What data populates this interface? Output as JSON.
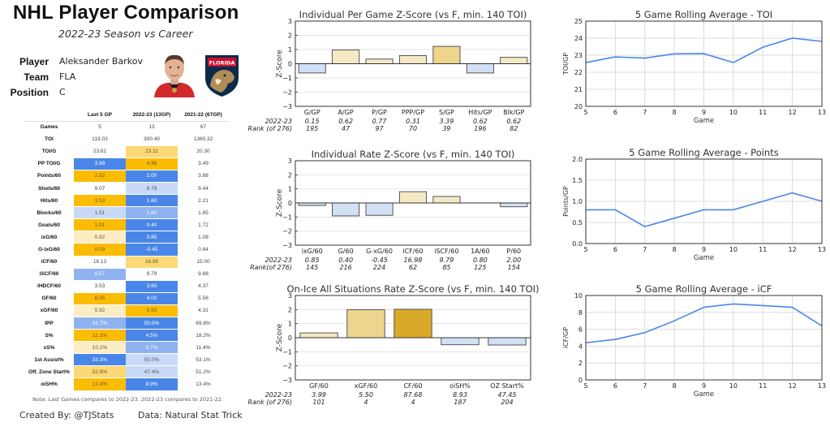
{
  "header": {
    "title": "NHL Player Comparison",
    "subtitle": "2022-23 Season vs Career"
  },
  "player_info": {
    "player_label": "Player",
    "player_value": "Aleksander Barkov",
    "team_label": "Team",
    "team_value": "FLA",
    "position_label": "Position",
    "position_value": "C",
    "headshot_icon": "player-headshot",
    "team_logo_icon": "florida-panthers-logo"
  },
  "colors": {
    "dark_blue": "#4a86e8",
    "mid_blue": "#8fb3f0",
    "light_blue": "#c9daf8",
    "dark_gold": "#fbbc04",
    "mid_gold": "#fcd876",
    "light_gold": "#fdedc4",
    "line_blue": "#4a86e8",
    "bar_neg": "#d2e0f6",
    "bar_pos_light": "#f5e8c4",
    "bar_pos_mid": "#efd48e",
    "bar_pos_dark": "#d9a92a"
  },
  "stats_table": {
    "columns": [
      "",
      "Last 5 GP",
      "2022-23 (13GP)",
      "2021-22 (67GP)"
    ],
    "rows": [
      {
        "label": "Games",
        "values": [
          "5",
          "13",
          "67"
        ],
        "shades": [
          "",
          "",
          ""
        ]
      },
      {
        "label": "TOI",
        "values": [
          "119.03",
          "300.40",
          "1360.32"
        ],
        "shades": [
          "",
          "",
          ""
        ]
      },
      {
        "label": "TOI/G",
        "values": [
          "23.81",
          "23.11",
          "20.30"
        ],
        "shades": [
          "",
          "mid_gold",
          ""
        ]
      },
      {
        "label": "PP TOI/G",
        "values": [
          "3.88",
          "4.96",
          "3.49"
        ],
        "shades": [
          "dark_blue",
          "dark_gold",
          ""
        ]
      },
      {
        "label": "Points/60",
        "values": [
          "2.52",
          "2.00",
          "3.88"
        ],
        "shades": [
          "dark_gold",
          "dark_blue",
          ""
        ]
      },
      {
        "label": "Shots/60",
        "values": [
          "9.07",
          "8.79",
          "9.44"
        ],
        "shades": [
          "",
          "light_blue",
          ""
        ]
      },
      {
        "label": "Hits/60",
        "values": [
          "3.53",
          "1.60",
          "2.21"
        ],
        "shades": [
          "dark_gold",
          "dark_blue",
          ""
        ]
      },
      {
        "label": "Blocks/60",
        "values": [
          "1.51",
          "1.60",
          "1.85"
        ],
        "shades": [
          "light_blue",
          "mid_blue",
          ""
        ]
      },
      {
        "label": "Goals/60",
        "values": [
          "1.01",
          "0.40",
          "1.72"
        ],
        "shades": [
          "dark_gold",
          "dark_blue",
          ""
        ]
      },
      {
        "label": "ixG/60",
        "values": [
          "0.92",
          "0.85",
          "1.08"
        ],
        "shades": [
          "light_gold",
          "dark_blue",
          ""
        ]
      },
      {
        "label": "G-ixG/60",
        "values": [
          "0.09",
          "-0.45",
          "0.64"
        ],
        "shades": [
          "dark_gold",
          "dark_blue",
          ""
        ]
      },
      {
        "label": "iCF/60",
        "values": [
          "16.13",
          "16.98",
          "15.00"
        ],
        "shades": [
          "",
          "mid_gold",
          ""
        ]
      },
      {
        "label": "iSCF/60",
        "values": [
          "8.57",
          "9.79",
          "9.88"
        ],
        "shades": [
          "mid_blue",
          "",
          ""
        ]
      },
      {
        "label": "iHDCF/60",
        "values": [
          "3.53",
          "3.60",
          "4.37"
        ],
        "shades": [
          "",
          "dark_blue",
          ""
        ]
      },
      {
        "label": "GF/60",
        "values": [
          "6.05",
          "4.00",
          "5.56"
        ],
        "shades": [
          "dark_gold",
          "dark_blue",
          ""
        ]
      },
      {
        "label": "xGF/60",
        "values": [
          "5.92",
          "5.50",
          "4.31"
        ],
        "shades": [
          "light_gold",
          "dark_gold",
          ""
        ]
      },
      {
        "label": "IPP",
        "values": [
          "41.7%",
          "50.0%",
          "69.8%"
        ],
        "shades": [
          "mid_blue",
          "dark_blue",
          ""
        ]
      },
      {
        "label": "S%",
        "values": [
          "11.1%",
          "4.5%",
          "18.2%"
        ],
        "shades": [
          "dark_gold",
          "dark_blue",
          ""
        ]
      },
      {
        "label": "xS%",
        "values": [
          "10.2%",
          "9.7%",
          "11.4%"
        ],
        "shades": [
          "light_gold",
          "mid_blue",
          ""
        ]
      },
      {
        "label": "1st Assist%",
        "values": [
          "33.3%",
          "50.0%",
          "53.1%"
        ],
        "shades": [
          "dark_blue",
          "light_blue",
          ""
        ]
      },
      {
        "label": "Off. Zone Start%",
        "values": [
          "52.8%",
          "47.4%",
          "51.2%"
        ],
        "shades": [
          "mid_gold",
          "light_blue",
          ""
        ]
      },
      {
        "label": "oiSH%",
        "values": [
          "12.4%",
          "8.9%",
          "13.4%"
        ],
        "shades": [
          "dark_gold",
          "dark_blue",
          ""
        ]
      }
    ]
  },
  "footer": {
    "note": "Note: Last Games compares to 2022-23. 2022-23 compares to 2021-22.",
    "created_by": "Created By: @TJStats",
    "data_source": "Data: Natural Stat Trick"
  },
  "chart_data": [
    {
      "id": "per-game",
      "type": "bar",
      "title": "Individual Per Game Z-Score (vs F, min. 140 TOI)",
      "ylabel": "Z-Score",
      "ylim": [
        -3,
        3
      ],
      "yticks": [
        "3",
        "2",
        "1",
        "0",
        "−1",
        "−2",
        "−3"
      ],
      "categories": [
        "G/GP",
        "A/GP",
        "P/GP",
        "PPP/GP",
        "S/GP",
        "Hits/GP",
        "Blk/GP"
      ],
      "values": [
        -0.65,
        0.97,
        0.33,
        0.57,
        1.22,
        -0.65,
        0.45
      ],
      "season_label": "2022-23",
      "season_values": [
        "0.15",
        "0.62",
        "0.77",
        "0.31",
        "3.39",
        "0.62",
        "0.62"
      ],
      "rank_label": "Rank (of 276)",
      "ranks": [
        "195",
        "47",
        "97",
        "70",
        "39",
        "196",
        "82"
      ]
    },
    {
      "id": "rate",
      "type": "bar",
      "title": "Individual Rate Z-Score (vs F, min. 140 TOI)",
      "ylabel": "Z-Score",
      "ylim": [
        -3,
        3
      ],
      "yticks": [
        "3",
        "2",
        "1",
        "0",
        "−1",
        "−2",
        "−3"
      ],
      "categories": [
        "ixG/60",
        "G/60",
        "G-xG/60",
        "iCF/60",
        "iSCF/60",
        "1A/60",
        "P/60"
      ],
      "values": [
        -0.18,
        -0.92,
        -0.88,
        0.8,
        0.46,
        0.0,
        -0.27
      ],
      "season_label": "2022-23",
      "season_values": [
        "0.85",
        "0.40",
        "-0.45",
        "16.98",
        "9.79",
        "0.80",
        "2.00"
      ],
      "rank_label": "Rank(of 276)",
      "ranks": [
        "145",
        "216",
        "224",
        "62",
        "85",
        "125",
        "154"
      ]
    },
    {
      "id": "on-ice",
      "type": "bar",
      "title": "On-Ice All Situations Rate Z-Score (vs F, min. 140 TOI)",
      "ylabel": "Z-Score",
      "ylim": [
        -3,
        3
      ],
      "yticks": [
        "3",
        "2",
        "1",
        "0",
        "−1",
        "−2",
        "−3"
      ],
      "categories": [
        "GF/60",
        "xGF/60",
        "CF/60",
        "oiSH%",
        "OZ Start%"
      ],
      "values": [
        0.34,
        1.99,
        2.02,
        -0.5,
        -0.52
      ],
      "season_label": "2022-23",
      "season_values": [
        "3.99",
        "5.50",
        "87.68",
        "8.93",
        "47.45"
      ],
      "rank_label": "Rank (of 276)",
      "ranks": [
        "101",
        "4",
        "4",
        "187",
        "204"
      ]
    },
    {
      "id": "toi",
      "type": "line",
      "title": "5 Game Rolling Average - TOI",
      "xlabel": "Game",
      "ylabel": "TOI/GP",
      "xlim": [
        5,
        13
      ],
      "ylim": [
        20,
        25
      ],
      "x": [
        5,
        6,
        7,
        8,
        9,
        10,
        11,
        12,
        13
      ],
      "y": [
        22.57,
        22.9,
        22.83,
        23.08,
        23.09,
        22.57,
        23.47,
        24.0,
        23.81
      ],
      "yticks": [
        "25",
        "24",
        "23",
        "22",
        "21",
        "20"
      ],
      "xticks": [
        "5",
        "6",
        "7",
        "8",
        "9",
        "10",
        "11",
        "12",
        "13"
      ],
      "grid": true
    },
    {
      "id": "points",
      "type": "line",
      "title": "5 Game Rolling Average - Points",
      "xlabel": "Game",
      "ylabel": "Points/GP",
      "xlim": [
        5,
        13
      ],
      "ylim": [
        0,
        2
      ],
      "x": [
        5,
        6,
        7,
        8,
        9,
        10,
        11,
        12,
        13
      ],
      "y": [
        0.8,
        0.8,
        0.4,
        0.6,
        0.8,
        0.8,
        1.0,
        1.2,
        1.0
      ],
      "yticks": [
        "2.0",
        "1.5",
        "1.0",
        "0.5",
        "0.0"
      ],
      "xticks": [
        "5",
        "6",
        "7",
        "8",
        "9",
        "10",
        "11",
        "12",
        "13"
      ],
      "grid": true
    },
    {
      "id": "icf",
      "type": "line",
      "title": "5 Game Rolling Average - iCF",
      "xlabel": "Game",
      "ylabel": "iCF/GP",
      "xlim": [
        5,
        13
      ],
      "ylim": [
        0,
        10
      ],
      "x": [
        5,
        6,
        7,
        8,
        9,
        10,
        11,
        12,
        13
      ],
      "y": [
        4.4,
        4.8,
        5.6,
        7.0,
        8.6,
        9.0,
        8.8,
        8.6,
        6.4
      ],
      "yticks": [
        "10",
        "8",
        "6",
        "4",
        "2",
        "0"
      ],
      "xticks": [
        "5",
        "6",
        "7",
        "8",
        "9",
        "10",
        "11",
        "12",
        "13"
      ],
      "grid": true
    }
  ]
}
